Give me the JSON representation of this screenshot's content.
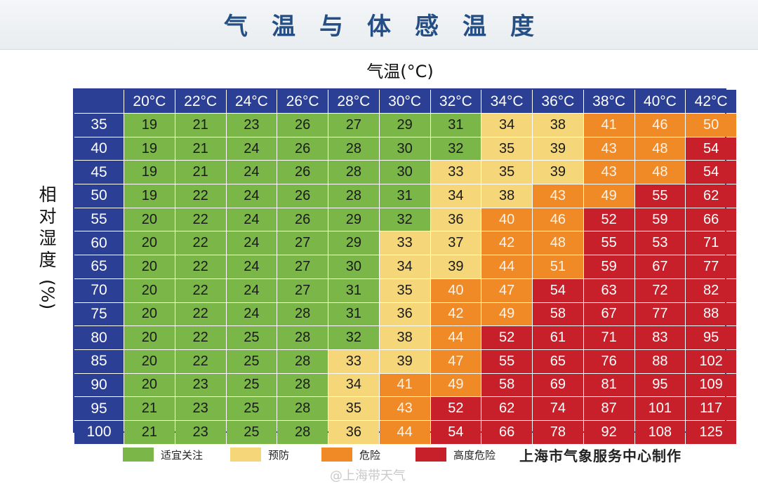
{
  "title": "气温与体感温度",
  "chart_data": {
    "type": "heatmap",
    "title": "气温与体感温度",
    "xlabel": "气温(°C)",
    "ylabel": "相对湿度(%)",
    "ylabel_chars": [
      "相",
      "对",
      "湿",
      "度"
    ],
    "ylabel_unit": "(%)",
    "x": [
      "20°C",
      "22°C",
      "24°C",
      "26°C",
      "28°C",
      "30°C",
      "32°C",
      "34°C",
      "36°C",
      "38°C",
      "40°C",
      "42°C"
    ],
    "y": [
      "35",
      "40",
      "45",
      "50",
      "55",
      "60",
      "65",
      "70",
      "75",
      "80",
      "85",
      "90",
      "95",
      "100"
    ],
    "values": [
      [
        19,
        21,
        23,
        26,
        27,
        29,
        31,
        34,
        38,
        41,
        46,
        50
      ],
      [
        19,
        21,
        24,
        26,
        28,
        30,
        32,
        35,
        39,
        43,
        48,
        54
      ],
      [
        19,
        21,
        24,
        26,
        28,
        30,
        33,
        35,
        39,
        43,
        48,
        54
      ],
      [
        19,
        22,
        24,
        26,
        28,
        31,
        34,
        38,
        43,
        49,
        55,
        62
      ],
      [
        20,
        22,
        24,
        26,
        29,
        32,
        36,
        40,
        46,
        52,
        59,
        66
      ],
      [
        20,
        22,
        24,
        27,
        29,
        33,
        37,
        42,
        48,
        55,
        53,
        71
      ],
      [
        20,
        22,
        24,
        27,
        30,
        34,
        39,
        44,
        51,
        59,
        67,
        77
      ],
      [
        20,
        22,
        24,
        27,
        31,
        35,
        40,
        47,
        54,
        63,
        72,
        82
      ],
      [
        20,
        22,
        24,
        28,
        31,
        36,
        42,
        49,
        58,
        67,
        77,
        88
      ],
      [
        20,
        22,
        25,
        28,
        32,
        38,
        44,
        52,
        61,
        71,
        83,
        95
      ],
      [
        20,
        22,
        25,
        28,
        33,
        39,
        47,
        55,
        65,
        76,
        88,
        102
      ],
      [
        20,
        23,
        25,
        28,
        34,
        41,
        49,
        58,
        69,
        81,
        95,
        109
      ],
      [
        21,
        23,
        25,
        28,
        35,
        43,
        52,
        62,
        74,
        87,
        101,
        117
      ],
      [
        21,
        23,
        25,
        28,
        36,
        44,
        54,
        66,
        78,
        92,
        108,
        125
      ]
    ],
    "levels": [
      [
        0,
        0,
        0,
        0,
        0,
        0,
        0,
        1,
        1,
        2,
        2,
        2
      ],
      [
        0,
        0,
        0,
        0,
        0,
        0,
        0,
        1,
        1,
        2,
        2,
        3
      ],
      [
        0,
        0,
        0,
        0,
        0,
        0,
        1,
        1,
        1,
        2,
        2,
        3
      ],
      [
        0,
        0,
        0,
        0,
        0,
        0,
        1,
        1,
        2,
        2,
        3,
        3
      ],
      [
        0,
        0,
        0,
        0,
        0,
        0,
        1,
        2,
        2,
        3,
        3,
        3
      ],
      [
        0,
        0,
        0,
        0,
        0,
        1,
        1,
        2,
        2,
        3,
        3,
        3
      ],
      [
        0,
        0,
        0,
        0,
        0,
        1,
        1,
        2,
        2,
        3,
        3,
        3
      ],
      [
        0,
        0,
        0,
        0,
        0,
        1,
        2,
        2,
        3,
        3,
        3,
        3
      ],
      [
        0,
        0,
        0,
        0,
        0,
        1,
        2,
        2,
        3,
        3,
        3,
        3
      ],
      [
        0,
        0,
        0,
        0,
        0,
        1,
        2,
        3,
        3,
        3,
        3,
        3
      ],
      [
        0,
        0,
        0,
        0,
        1,
        1,
        2,
        3,
        3,
        3,
        3,
        3
      ],
      [
        0,
        0,
        0,
        0,
        1,
        2,
        2,
        3,
        3,
        3,
        3,
        3
      ],
      [
        0,
        0,
        0,
        0,
        1,
        2,
        3,
        3,
        3,
        3,
        3,
        3
      ],
      [
        0,
        0,
        0,
        0,
        1,
        2,
        3,
        3,
        3,
        3,
        3,
        3
      ]
    ],
    "legend": [
      {
        "label": "适宜关注",
        "color": "#7ab648"
      },
      {
        "label": "预防",
        "color": "#f5d77a"
      },
      {
        "label": "危险",
        "color": "#f08a27"
      },
      {
        "label": "高度危险",
        "color": "#c8202a"
      }
    ],
    "colors": {
      "header": "#2b3f95",
      "header_text": "#ffffff"
    }
  },
  "credit": "上海市气象服务中心制作",
  "watermark": "@上海带天气"
}
